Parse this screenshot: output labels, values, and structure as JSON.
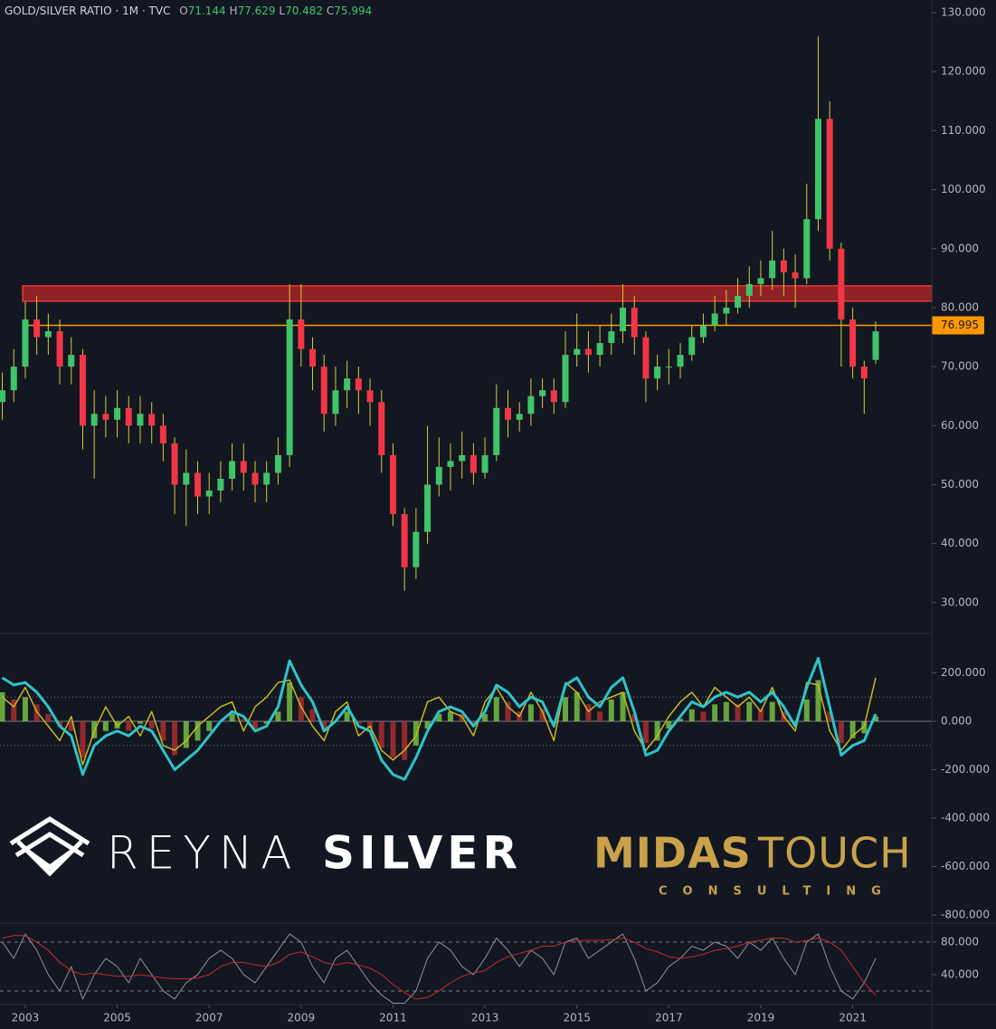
{
  "chart_data": {
    "type": "candlestick",
    "title": "GOLD/SILVER RATIO · 1M · TVC",
    "ohlc_labels": [
      "O",
      "H",
      "L",
      "C"
    ],
    "x": [
      2002.5,
      2002.75,
      2003,
      2003.25,
      2003.5,
      2003.75,
      2004,
      2004.25,
      2004.5,
      2004.75,
      2005,
      2005.25,
      2005.5,
      2005.75,
      2006,
      2006.25,
      2006.5,
      2006.75,
      2007,
      2007.25,
      2007.5,
      2007.75,
      2008,
      2008.25,
      2008.5,
      2008.75,
      2009,
      2009.25,
      2009.5,
      2009.75,
      2010,
      2010.25,
      2010.5,
      2010.75,
      2011,
      2011.25,
      2011.5,
      2011.75,
      2012,
      2012.25,
      2012.5,
      2012.75,
      2013,
      2013.25,
      2013.5,
      2013.75,
      2014,
      2014.25,
      2014.5,
      2014.75,
      2015,
      2015.25,
      2015.5,
      2015.75,
      2016,
      2016.25,
      2016.5,
      2016.75,
      2017,
      2017.25,
      2017.5,
      2017.75,
      2018,
      2018.25,
      2018.5,
      2018.75,
      2019,
      2019.25,
      2019.5,
      2019.75,
      2020,
      2020.25,
      2020.5,
      2020.75,
      2021,
      2021.25,
      2021.5
    ],
    "open": [
      64,
      66,
      70,
      78,
      75,
      76,
      70,
      72,
      60,
      62,
      61,
      63,
      60,
      62,
      60,
      57,
      50,
      52,
      48,
      49,
      51,
      54,
      52,
      50,
      52,
      55,
      78,
      73,
      70,
      62,
      66,
      68,
      66,
      64,
      55,
      45,
      36,
      42,
      50,
      53,
      54,
      55,
      52,
      55,
      63,
      61,
      62,
      65,
      66,
      64,
      72,
      73,
      72,
      74,
      76,
      80,
      75,
      68,
      70,
      70,
      72,
      75,
      77,
      79,
      80,
      82,
      84,
      85,
      88,
      86,
      85,
      95,
      112,
      90,
      78,
      70,
      71.144
    ],
    "high": [
      69,
      73,
      81,
      82,
      79,
      78,
      75,
      73,
      66,
      65,
      66,
      65,
      65,
      64,
      62,
      58,
      56,
      54,
      52,
      54,
      57,
      57,
      54,
      54,
      58,
      84,
      84,
      75,
      72,
      70,
      71,
      70,
      68,
      66,
      57,
      46,
      46,
      60,
      58,
      57,
      59,
      57,
      58,
      67,
      66,
      64,
      68,
      68,
      68,
      76,
      79,
      76,
      77,
      79,
      84,
      82,
      76,
      72,
      73,
      74,
      77,
      79,
      82,
      83,
      85,
      87,
      88,
      93,
      90,
      89,
      101,
      126,
      115,
      91,
      80,
      71,
      77.629
    ],
    "low": [
      61,
      64,
      68,
      72,
      72,
      67,
      67,
      56,
      51,
      58,
      58,
      57,
      57,
      57,
      54,
      45,
      43,
      45,
      45,
      47,
      49,
      49,
      47,
      47,
      50,
      53,
      70,
      66,
      59,
      60,
      63,
      62,
      60,
      52,
      43,
      32,
      34,
      40,
      48,
      49,
      51,
      50,
      51,
      54,
      58,
      59,
      60,
      63,
      62,
      63,
      70,
      69,
      70,
      72,
      74,
      72,
      64,
      66,
      67,
      68,
      71,
      74,
      76,
      77,
      79,
      80,
      82,
      83,
      82,
      80,
      84,
      93,
      88,
      70,
      68,
      62,
      70.482
    ],
    "close": [
      66,
      70,
      78,
      75,
      76,
      70,
      72,
      60,
      62,
      61,
      63,
      60,
      62,
      60,
      57,
      50,
      52,
      48,
      49,
      51,
      54,
      52,
      50,
      52,
      55,
      78,
      73,
      70,
      62,
      66,
      68,
      66,
      64,
      55,
      45,
      36,
      42,
      50,
      53,
      54,
      55,
      52,
      55,
      63,
      61,
      62,
      65,
      66,
      64,
      72,
      73,
      72,
      74,
      76,
      80,
      75,
      68,
      70,
      70,
      72,
      75,
      77,
      79,
      80,
      82,
      84,
      85,
      88,
      86,
      85,
      95,
      112,
      90,
      78,
      70,
      68,
      75.994
    ],
    "up_color": "#3fc46a",
    "down_color": "#f23645",
    "wick_color": "#d6cb3a",
    "xlim": [
      2002.45,
      2022.72
    ],
    "xticks": [
      2003,
      2005,
      2007,
      2009,
      2011,
      2013,
      2015,
      2017,
      2019,
      2021
    ],
    "ylim": [
      26.3,
      132.15
    ],
    "yticks": [
      {
        "value": 30,
        "label": "30.000"
      },
      {
        "value": 40,
        "label": "40.000"
      },
      {
        "value": 50,
        "label": "50.000"
      },
      {
        "value": 60,
        "label": "60.000"
      },
      {
        "value": 70,
        "label": "70.000"
      },
      {
        "value": 80,
        "label": "80.000"
      },
      {
        "value": 90,
        "label": "90.000"
      },
      {
        "value": 100,
        "label": "100.000"
      },
      {
        "value": 110,
        "label": "110.000"
      },
      {
        "value": 120,
        "label": "120.000"
      },
      {
        "value": 130,
        "label": "130.000"
      }
    ],
    "zone": [
      81.1,
      83.7
    ],
    "zone_color": "#c62828",
    "price_line": 76.995,
    "price_line_color": "#ff9800",
    "oscillator": {
      "ylim": [
        -833.6,
        362.6
      ],
      "yticks": [
        {
          "value": 200,
          "label": "200.000"
        },
        {
          "value": 0,
          "label": "0.000"
        },
        {
          "value": -200,
          "label": "-200.000"
        },
        {
          "value": -400,
          "label": "-400.000"
        },
        {
          "value": -600,
          "label": "-600.000"
        },
        {
          "value": -800,
          "label": "-800.000"
        }
      ],
      "bands": [
        100,
        -100
      ],
      "histogram": [
        120,
        90,
        100,
        70,
        30,
        -20,
        -40,
        -150,
        -70,
        -40,
        -30,
        -40,
        -10,
        -30,
        -80,
        -140,
        -110,
        -80,
        -40,
        0,
        30,
        10,
        -30,
        -10,
        40,
        160,
        100,
        50,
        -30,
        0,
        40,
        -10,
        -30,
        -110,
        -150,
        -160,
        -100,
        -30,
        30,
        40,
        30,
        -10,
        30,
        100,
        80,
        40,
        70,
        50,
        -10,
        100,
        120,
        70,
        40,
        90,
        120,
        30,
        -90,
        -80,
        -30,
        10,
        50,
        40,
        70,
        80,
        70,
        80,
        50,
        80,
        40,
        -10,
        90,
        170,
        40,
        -90,
        -70,
        -50,
        20
      ],
      "hist_up_color": "#7ac943",
      "hist_down_color": "#b03030",
      "series": [
        {
          "color": "#c8b820",
          "width": 1.5,
          "values": [
            100,
            60,
            140,
            40,
            -20,
            -80,
            20,
            -180,
            -40,
            60,
            -20,
            20,
            -60,
            40,
            -100,
            -120,
            -80,
            -20,
            20,
            60,
            80,
            -40,
            60,
            100,
            160,
            170,
            60,
            -20,
            -80,
            40,
            80,
            -60,
            -20,
            -120,
            -160,
            -120,
            -60,
            80,
            100,
            40,
            20,
            -60,
            80,
            140,
            60,
            20,
            120,
            40,
            -80,
            160,
            120,
            40,
            80,
            100,
            120,
            -40,
            -120,
            -60,
            20,
            80,
            120,
            60,
            140,
            100,
            60,
            100,
            40,
            140,
            20,
            -40,
            160,
            150,
            -40,
            -120,
            -60,
            -20,
            180
          ]
        },
        {
          "color": "#2ec4c8",
          "width": 3,
          "values": [
            180,
            150,
            160,
            120,
            60,
            -20,
            -60,
            -220,
            -100,
            -60,
            -40,
            -60,
            -20,
            -40,
            -120,
            -200,
            -160,
            -120,
            -60,
            0,
            40,
            20,
            -40,
            -20,
            60,
            250,
            150,
            80,
            -40,
            0,
            60,
            -20,
            -40,
            -160,
            -220,
            -240,
            -150,
            -40,
            40,
            60,
            40,
            -20,
            40,
            150,
            120,
            60,
            100,
            80,
            -20,
            150,
            180,
            100,
            60,
            140,
            180,
            40,
            -140,
            -120,
            -40,
            20,
            80,
            60,
            100,
            120,
            100,
            120,
            80,
            120,
            60,
            -20,
            140,
            260,
            60,
            -140,
            -100,
            -80,
            30
          ]
        }
      ]
    },
    "lower": {
      "ylim": [
        3.3,
        103.3
      ],
      "yticks": [
        {
          "value": 80,
          "label": "80.000"
        },
        {
          "value": 40,
          "label": "40.000"
        }
      ],
      "bands": [
        80,
        20
      ],
      "series": [
        {
          "color": "#8d9099",
          "width": 1,
          "values": [
            80,
            60,
            90,
            70,
            40,
            20,
            50,
            10,
            40,
            60,
            50,
            30,
            60,
            40,
            20,
            10,
            30,
            40,
            60,
            70,
            60,
            40,
            30,
            50,
            70,
            90,
            80,
            50,
            30,
            60,
            70,
            50,
            30,
            15,
            5,
            5,
            20,
            60,
            80,
            70,
            50,
            40,
            60,
            85,
            70,
            50,
            70,
            60,
            40,
            80,
            85,
            60,
            70,
            80,
            90,
            60,
            20,
            30,
            50,
            60,
            75,
            70,
            80,
            75,
            60,
            80,
            70,
            85,
            60,
            40,
            80,
            90,
            50,
            20,
            10,
            30,
            60
          ]
        },
        {
          "color": "#c62828",
          "width": 1,
          "values": [
            85,
            88,
            88,
            80,
            70,
            55,
            45,
            40,
            42,
            40,
            38,
            38,
            40,
            38,
            36,
            35,
            35,
            36,
            40,
            50,
            55,
            55,
            52,
            50,
            55,
            65,
            68,
            62,
            55,
            52,
            55,
            52,
            48,
            40,
            28,
            18,
            10,
            12,
            20,
            30,
            38,
            42,
            45,
            55,
            62,
            66,
            70,
            75,
            75,
            80,
            82,
            82,
            82,
            83,
            85,
            80,
            72,
            68,
            62,
            60,
            62,
            65,
            70,
            72,
            75,
            80,
            82,
            85,
            85,
            80,
            82,
            85,
            80,
            70,
            50,
            30,
            15
          ]
        }
      ]
    }
  },
  "watermark": {
    "reyna": "REYNA",
    "silver": "SILVER",
    "midas": "MIDAS",
    "touch": "TOUCH",
    "consulting": "CONSULTING"
  }
}
